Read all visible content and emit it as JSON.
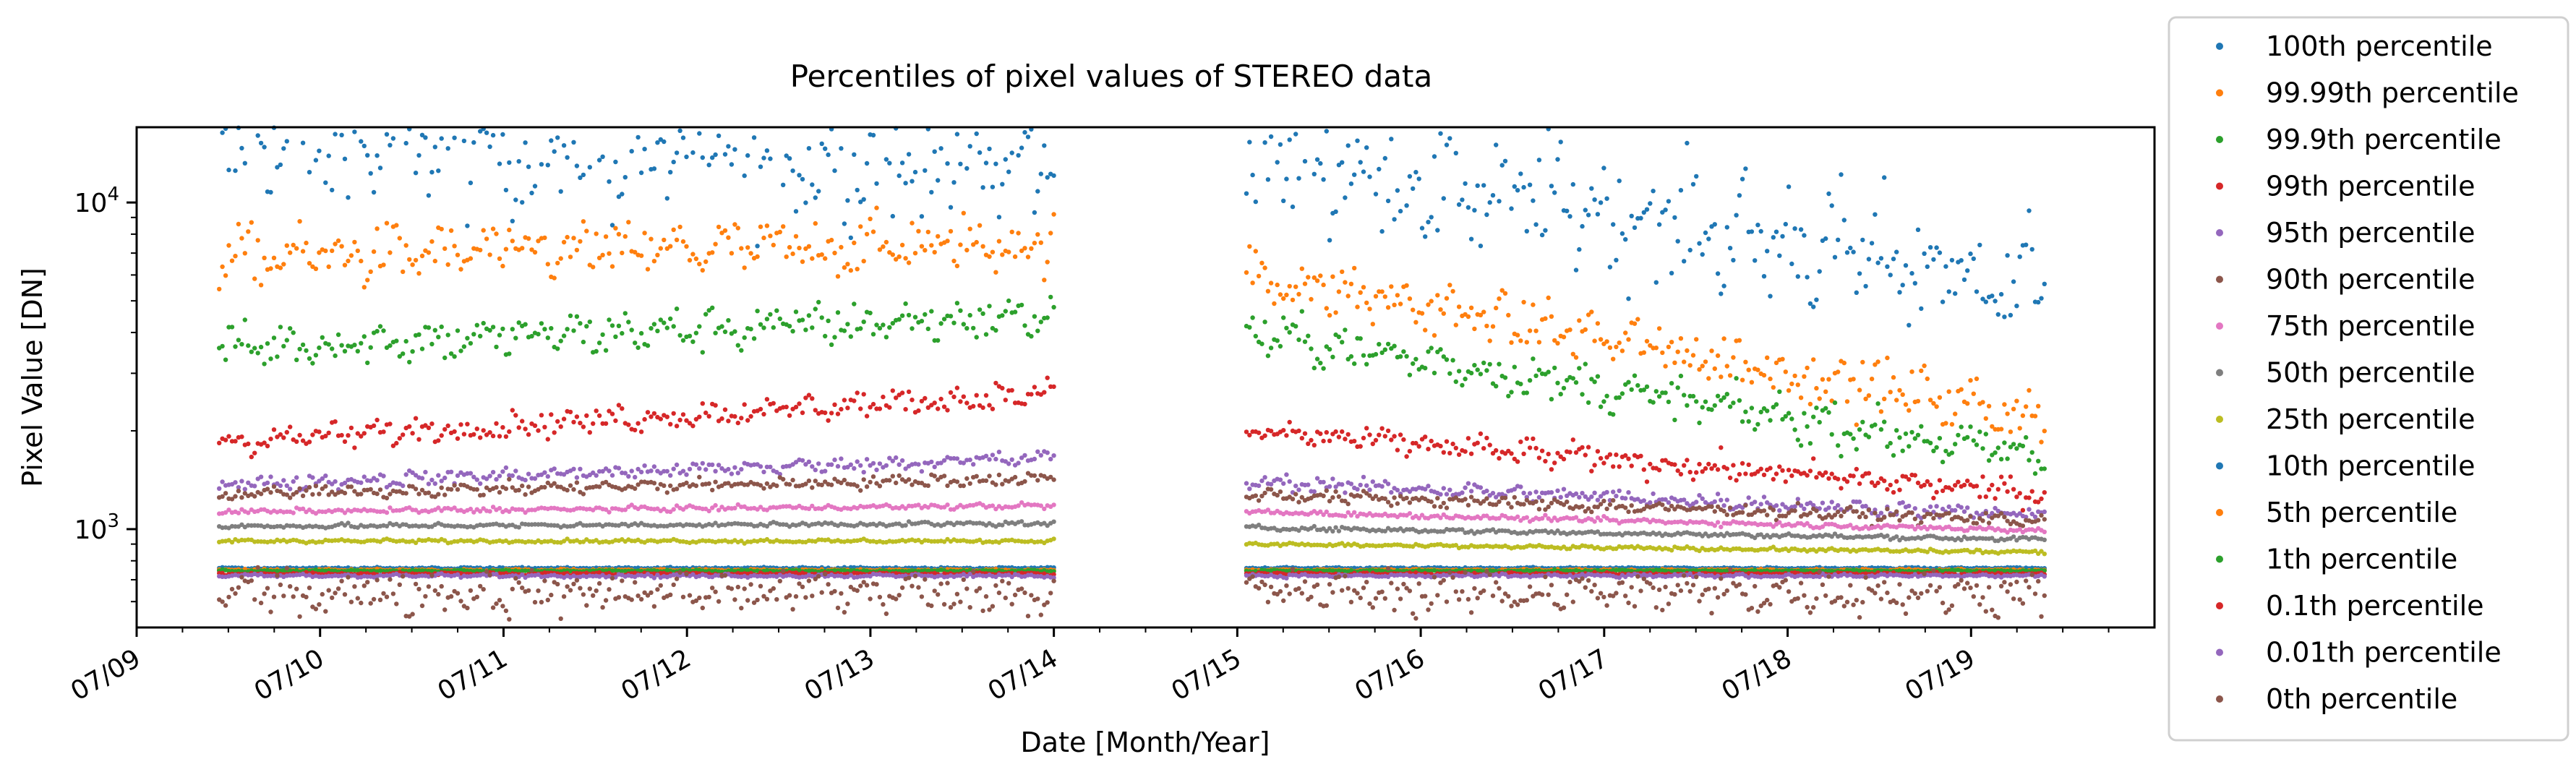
{
  "chart_data": {
    "type": "scatter",
    "title": "Percentiles of pixel values of STEREO data",
    "xlabel": "Date [Month/Year]",
    "ylabel": "Pixel Value [DN]",
    "yscale": "log",
    "ylim": [
      500,
      17000
    ],
    "xlim": [
      "2009-01-01",
      "2020-01-01"
    ],
    "xtick_labels": [
      "07/09",
      "07/10",
      "07/11",
      "07/12",
      "07/13",
      "07/14",
      "07/15",
      "07/16",
      "07/17",
      "07/18",
      "07/19"
    ],
    "ytick_labels": [
      {
        "base": "10",
        "exp": "3",
        "value": 1000
      },
      {
        "base": "10",
        "exp": "4",
        "value": 10000
      }
    ],
    "legend": {
      "placement": "outside-right"
    },
    "grid": false,
    "data_gap": [
      "2014-07-01",
      "2015-01-01"
    ],
    "series": [
      {
        "name": "100th percentile",
        "color": "#1f77b4",
        "segments": [
          [
            2009.45,
            15500,
            2014.0,
            13000
          ],
          [
            2015.05,
            14500,
            2019.4,
            5500
          ]
        ],
        "spread": 0.28
      },
      {
        "name": "99.99th percentile",
        "color": "#ff7f0e",
        "segments": [
          [
            2009.45,
            6800,
            2014.0,
            7500
          ],
          [
            2015.05,
            6000,
            2019.4,
            2200
          ]
        ],
        "spread": 0.13
      },
      {
        "name": "99.9th percentile",
        "color": "#2ca02c",
        "segments": [
          [
            2009.45,
            3600,
            2014.0,
            4500
          ],
          [
            2015.05,
            4000,
            2019.4,
            1650
          ]
        ],
        "spread": 0.1
      },
      {
        "name": "99th percentile",
        "color": "#d62728",
        "segments": [
          [
            2009.45,
            1850,
            2014.0,
            2600
          ],
          [
            2015.05,
            2000,
            2019.4,
            1280
          ]
        ],
        "spread": 0.06
      },
      {
        "name": "95th percentile",
        "color": "#9467bd",
        "segments": [
          [
            2009.45,
            1370,
            2014.0,
            1650
          ],
          [
            2015.05,
            1400,
            2019.4,
            1100
          ]
        ],
        "spread": 0.035
      },
      {
        "name": "90th percentile",
        "color": "#8c564b",
        "segments": [
          [
            2009.45,
            1280,
            2014.0,
            1430
          ],
          [
            2015.05,
            1280,
            2019.4,
            1060
          ]
        ],
        "spread": 0.03
      },
      {
        "name": "75th percentile",
        "color": "#e377c2",
        "segments": [
          [
            2009.45,
            1130,
            2014.0,
            1180
          ],
          [
            2015.05,
            1130,
            2019.4,
            990
          ]
        ],
        "spread": 0.012
      },
      {
        "name": "50th percentile",
        "color": "#7f7f7f",
        "segments": [
          [
            2009.45,
            1020,
            2014.0,
            1040
          ],
          [
            2015.05,
            1010,
            2019.4,
            930
          ]
        ],
        "spread": 0.01
      },
      {
        "name": "25th percentile",
        "color": "#bcbd22",
        "segments": [
          [
            2009.45,
            920,
            2014.0,
            920
          ],
          [
            2015.05,
            900,
            2019.4,
            850
          ]
        ],
        "spread": 0.008
      },
      {
        "name": "10th percentile",
        "color": "#1f77b4",
        "segments": [
          [
            2009.45,
            760,
            2014.0,
            760
          ],
          [
            2015.05,
            760,
            2019.4,
            760
          ]
        ],
        "spread": 0.004
      },
      {
        "name": "5th percentile",
        "color": "#ff7f0e",
        "segments": [
          [
            2009.45,
            750,
            2014.0,
            750
          ],
          [
            2015.05,
            750,
            2019.4,
            750
          ]
        ],
        "spread": 0.004
      },
      {
        "name": "1th percentile",
        "color": "#2ca02c",
        "segments": [
          [
            2009.45,
            745,
            2014.0,
            745
          ],
          [
            2015.05,
            745,
            2019.4,
            745
          ]
        ],
        "spread": 0.004
      },
      {
        "name": "0.1th percentile",
        "color": "#d62728",
        "segments": [
          [
            2009.45,
            730,
            2014.0,
            730
          ],
          [
            2015.05,
            730,
            2019.4,
            730
          ]
        ],
        "spread": 0.006
      },
      {
        "name": "0.01th percentile",
        "color": "#9467bd",
        "segments": [
          [
            2009.45,
            720,
            2014.0,
            720
          ],
          [
            2015.05,
            720,
            2019.4,
            720
          ]
        ],
        "spread": 0.008
      },
      {
        "name": "0th percentile",
        "color": "#8c564b",
        "segments": [
          [
            2009.45,
            640,
            2014.0,
            640
          ],
          [
            2015.05,
            640,
            2019.4,
            640
          ]
        ],
        "spread": 0.1
      }
    ]
  }
}
